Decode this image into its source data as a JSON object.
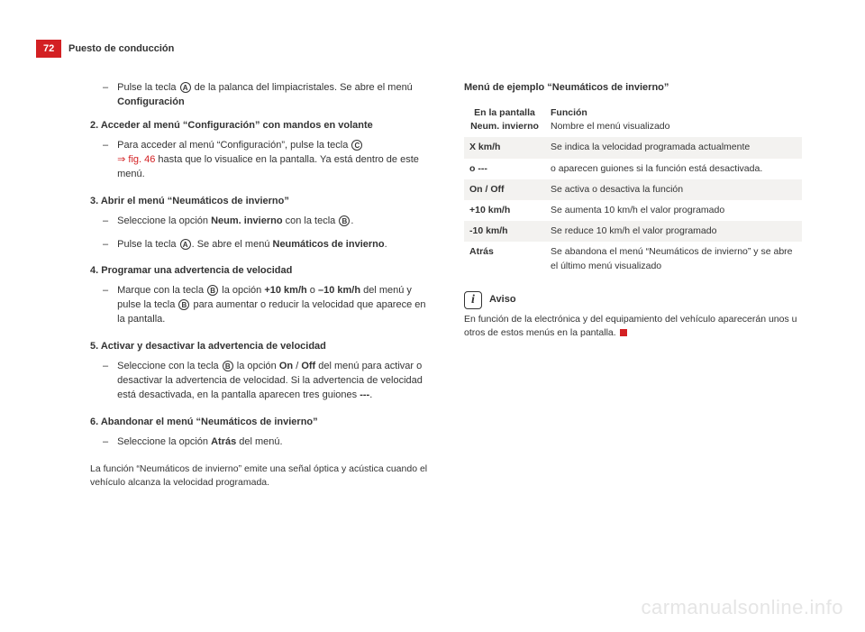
{
  "page": {
    "number": "72",
    "section": "Puesto de conducción"
  },
  "left": {
    "intro": {
      "pre": "Pulse la tecla ",
      "circ": "A",
      "post": " de la palanca del limpiacristales. Se abre el menú ",
      "bold": "Configuración"
    },
    "step2": {
      "title": "2. Acceder al menú “Configuración” con mandos en volante",
      "bullet": {
        "pre": "Para acceder al menú “Configuración”, pulse la tecla ",
        "circ": "C",
        "figref": "⇒ fig. 46",
        "post": " hasta que lo visualice en la pantalla. Ya está dentro de este menú."
      }
    },
    "step3": {
      "title": "3. Abrir el menú “Neumáticos de invierno”",
      "b1": {
        "pre": "Seleccione la opción ",
        "bold": "Neum. invierno",
        "mid": " con la tecla ",
        "circ": "B",
        "tail": "."
      },
      "b2": {
        "pre": "Pulse la tecla ",
        "circ": "A",
        "mid": ". Se abre el menú ",
        "bold": "Neumáticos de invierno",
        "tail": "."
      }
    },
    "step4": {
      "title": "4. Programar una advertencia de velocidad",
      "b1": {
        "pre": "Marque con la tecla ",
        "circ1": "B",
        "mid1": " la opción ",
        "bold1": "+10 km/h",
        "mid2": " o ",
        "bold2": "–10 km/h",
        "mid3": " del menú y pulse la tecla ",
        "circ2": "B",
        "post": " para aumentar o reducir la velocidad que aparece en la pantalla."
      }
    },
    "step5": {
      "title": "5. Activar y desactivar la advertencia de velocidad",
      "b1": {
        "pre": "Seleccione con la tecla ",
        "circ": "B",
        "mid1": " la opción ",
        "bold1": "On",
        "sep": " / ",
        "bold2": "Off",
        "mid2": " del menú para activar o desactivar la advertencia de velocidad. Si la advertencia de velocidad está desactivada, en la pantalla aparecen tres guiones ",
        "bold3": "---",
        "tail": "."
      }
    },
    "step6": {
      "title": "6. Abandonar el menú “Neumáticos de invierno”",
      "b1": {
        "pre": "Seleccione la opción ",
        "bold": "Atrás",
        "post": " del menú."
      }
    },
    "footnote": "La función “Neumáticos de invierno” emite una señal óptica y acústica cuando el vehículo alcanza la velocidad programada."
  },
  "right": {
    "title": "Menú de ejemplo “Neumáticos de invierno”",
    "table": {
      "head": {
        "c1a": "En la pantalla",
        "c1b": "Neum. invierno",
        "c2a": "Función",
        "c2b": "Nombre el menú visualizado"
      },
      "rows": [
        {
          "k": "X km/h",
          "v": "Se indica la velocidad programada actualmente",
          "band": true
        },
        {
          "k": "o ---",
          "v": "o aparecen guiones si la función está desactivada.",
          "band": false
        },
        {
          "k": "On / Off",
          "v": "Se activa o desactiva la función",
          "band": true
        },
        {
          "k": "+10 km/h",
          "v": "Se aumenta 10 km/h el valor programado",
          "band": false
        },
        {
          "k": "-10 km/h",
          "v": "Se reduce 10 km/h el valor programado",
          "band": true
        },
        {
          "k": "Atrás",
          "v": "Se abandona el menú “Neumáticos de invierno” y se abre el último menú visualizado",
          "band": false
        }
      ]
    },
    "aviso": {
      "label": "Aviso",
      "text": "En función de la electrónica y del equipamiento del vehículo aparecerán unos u otros de estos menús en la pantalla."
    }
  },
  "watermark": "carmanualsonline.info"
}
